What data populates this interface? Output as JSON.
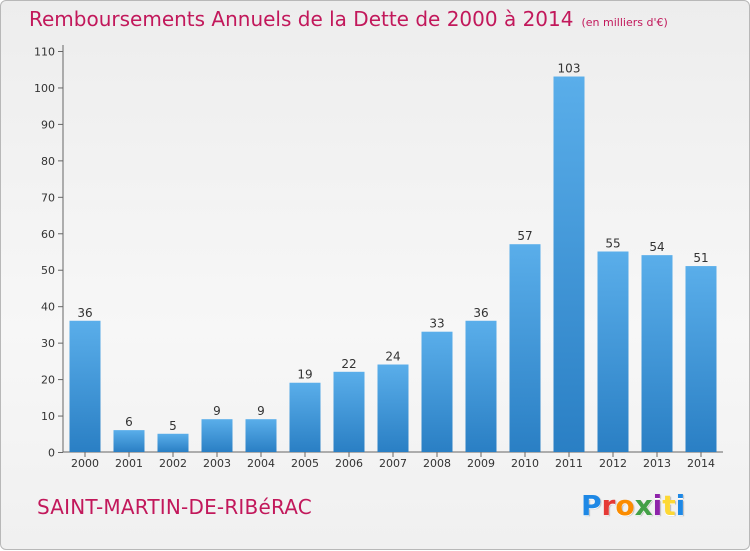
{
  "header": {
    "title": "Remboursements Annuels de la Dette de 2000 à 2014",
    "unit": "(en milliers d'€)"
  },
  "footer": {
    "commune": "SAINT-MARTIN-DE-RIBéRAC",
    "logo_text": "Proxiti",
    "logo_colors": [
      "#1e88e5",
      "#e53935",
      "#fb8c00",
      "#43a047",
      "#8e24aa",
      "#fdd835",
      "#1e88e5"
    ]
  },
  "chart_data": {
    "type": "bar",
    "categories": [
      "2000",
      "2001",
      "2002",
      "2003",
      "2004",
      "2005",
      "2006",
      "2007",
      "2008",
      "2009",
      "2010",
      "2011",
      "2012",
      "2013",
      "2014"
    ],
    "values": [
      36,
      6,
      5,
      9,
      9,
      19,
      22,
      24,
      33,
      36,
      57,
      103,
      55,
      54,
      51
    ],
    "yticks": [
      0,
      10,
      20,
      30,
      40,
      50,
      60,
      70,
      80,
      90,
      100,
      110
    ],
    "ylim": [
      0,
      110
    ],
    "bar_color": "#3b9be0",
    "grid": false
  }
}
